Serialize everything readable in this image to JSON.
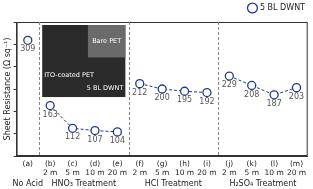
{
  "chart_data": {
    "type": "line",
    "y_label": "Sheet Resistance (Ω sq⁻¹)",
    "categories": [
      "(a)",
      "(b)",
      "(c)",
      "(d)",
      "(e)",
      "(f)",
      "(g)",
      "(h)",
      "(i)",
      "(j)",
      "(k)",
      "(l)",
      "(m)"
    ],
    "sublabels": [
      null,
      "2 m",
      "5 m",
      "10 m",
      "20 m",
      "2 m",
      "5 m",
      "10 m",
      "20 m",
      "2 m",
      "5 m",
      "10 m",
      "20 m"
    ],
    "groups": [
      {
        "label": "No Acid",
        "members": [
          "(a)"
        ]
      },
      {
        "label": "HNO₃ Treatment",
        "members": [
          "(b)",
          "(c)",
          "(d)",
          "(e)"
        ]
      },
      {
        "label": "HCl Treatment",
        "members": [
          "(f)",
          "(g)",
          "(h)",
          "(i)"
        ]
      },
      {
        "label": "H₂SO₄ Treatment",
        "members": [
          "(j)",
          "(k)",
          "(l)",
          "(m)"
        ]
      }
    ],
    "series": [
      {
        "name": "5 BL DWNT",
        "color": "#1f3a8a",
        "marker": "circle",
        "line_style": "dashed",
        "values": [
          309,
          163,
          112,
          107,
          104,
          212,
          200,
          195,
          192,
          229,
          208,
          187,
          203
        ]
      }
    ],
    "ylim": [
      50,
      350
    ],
    "yticks": [
      50,
      100,
      150,
      200,
      250,
      300,
      350
    ],
    "tick_labels": "x",
    "data_labels": true,
    "legend": "upper right",
    "grid": false,
    "annotations": [
      "Bare PET",
      "ITO-coated PET",
      "5 BL DWNT"
    ]
  }
}
